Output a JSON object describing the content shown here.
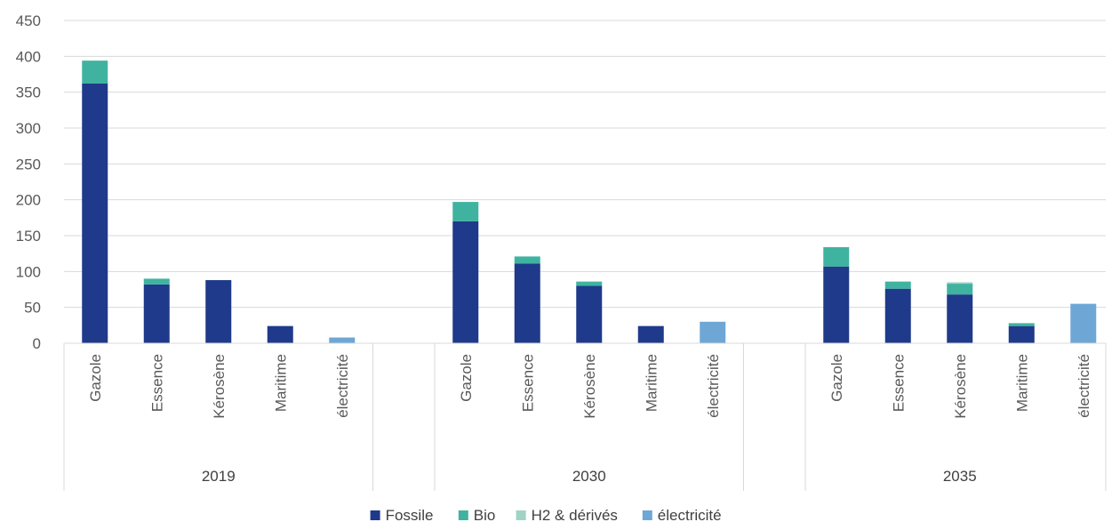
{
  "chart_data": {
    "type": "bar",
    "stacked": true,
    "title": "",
    "xlabel": "",
    "ylabel": "",
    "ylim": [
      0,
      450
    ],
    "yticks": [
      0,
      50,
      100,
      150,
      200,
      250,
      300,
      350,
      400,
      450
    ],
    "grid": true,
    "legend_position": "bottom",
    "groups": [
      {
        "label": "2019",
        "categories": [
          "Gazole",
          "Essence",
          "Kérosène",
          "Maritime",
          "électricité"
        ]
      },
      {
        "label": "2030",
        "categories": [
          "Gazole",
          "Essence",
          "Kérosène",
          "Maritime",
          "électricité"
        ]
      },
      {
        "label": "2035",
        "categories": [
          "Gazole",
          "Essence",
          "Kérosène",
          "Maritime",
          "électricité"
        ]
      }
    ],
    "series": [
      {
        "name": "Fossile",
        "color": "#1f3a8a",
        "values": [
          362,
          82,
          88,
          24,
          0,
          170,
          111,
          80,
          24,
          0,
          107,
          76,
          68,
          24,
          0
        ]
      },
      {
        "name": "Bio",
        "color": "#3fb3a0",
        "values": [
          32,
          8,
          0,
          0,
          0,
          27,
          10,
          6,
          0,
          0,
          27,
          10,
          15,
          4,
          0
        ]
      },
      {
        "name": "H2 & dérivés",
        "color": "#9fd3c4",
        "values": [
          0,
          0,
          0,
          0,
          0,
          0,
          0,
          0,
          0,
          0,
          0,
          0,
          2,
          0,
          0
        ]
      },
      {
        "name": "électricité",
        "color": "#6ea7d6",
        "values": [
          0,
          0,
          0,
          0,
          8,
          0,
          0,
          0,
          0,
          30,
          0,
          0,
          0,
          0,
          55
        ]
      }
    ]
  }
}
